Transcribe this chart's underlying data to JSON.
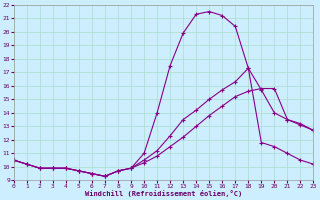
{
  "xlabel": "Windchill (Refroidissement éolien,°C)",
  "bg_color": "#cceeff",
  "grid_color": "#aaddcc",
  "line_color": "#880088",
  "xlim": [
    0,
    23
  ],
  "ylim": [
    9,
    22
  ],
  "xticks": [
    0,
    1,
    2,
    3,
    4,
    5,
    6,
    7,
    8,
    9,
    10,
    11,
    12,
    13,
    14,
    15,
    16,
    17,
    18,
    19,
    20,
    21,
    22,
    23
  ],
  "yticks": [
    9,
    10,
    11,
    12,
    13,
    14,
    15,
    16,
    17,
    18,
    19,
    20,
    21,
    22
  ],
  "line1_x": [
    0,
    1,
    2,
    3,
    4,
    5,
    6,
    7,
    8,
    9,
    10,
    11,
    12,
    13,
    14,
    15,
    16,
    17,
    18,
    19,
    20,
    21,
    22,
    23
  ],
  "line1_y": [
    10.5,
    10.2,
    9.9,
    9.9,
    9.9,
    9.7,
    9.5,
    9.3,
    9.7,
    9.9,
    10.3,
    10.8,
    11.5,
    12.2,
    13.0,
    13.8,
    14.5,
    15.2,
    15.6,
    15.8,
    15.8,
    13.5,
    13.2,
    12.7
  ],
  "line2_x": [
    0,
    1,
    2,
    3,
    4,
    5,
    6,
    7,
    8,
    9,
    10,
    11,
    12,
    13,
    14,
    15,
    16,
    17,
    18,
    19,
    20,
    21,
    22,
    23
  ],
  "line2_y": [
    10.5,
    10.2,
    9.9,
    9.9,
    9.9,
    9.7,
    9.5,
    9.3,
    9.7,
    9.9,
    11.0,
    14.0,
    17.5,
    19.9,
    21.3,
    21.5,
    21.2,
    20.4,
    17.3,
    11.8,
    11.5,
    11.0,
    10.5,
    10.2
  ],
  "line3_x": [
    0,
    1,
    2,
    3,
    4,
    5,
    6,
    7,
    8,
    9,
    10,
    11,
    12,
    13,
    14,
    15,
    16,
    17,
    18,
    19,
    20,
    21,
    22,
    23
  ],
  "line3_y": [
    10.5,
    10.2,
    9.9,
    9.9,
    9.9,
    9.7,
    9.5,
    9.3,
    9.7,
    9.9,
    10.5,
    11.2,
    12.3,
    13.5,
    14.2,
    15.0,
    15.7,
    16.3,
    17.3,
    15.7,
    14.0,
    13.5,
    13.1,
    12.7
  ]
}
